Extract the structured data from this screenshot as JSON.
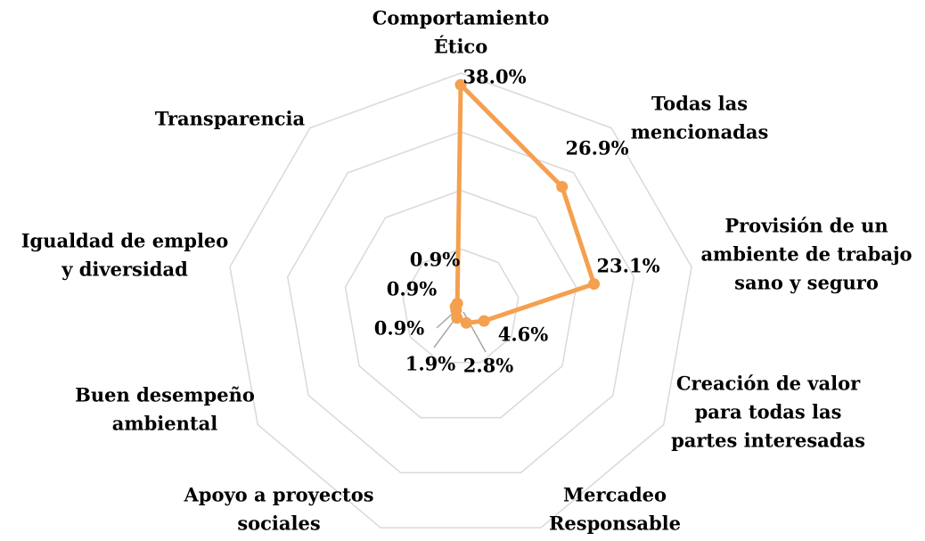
{
  "chart_data": {
    "type": "radar",
    "categories": [
      [
        "Comportamiento",
        "Ético"
      ],
      [
        "Todas las",
        "mencionadas"
      ],
      [
        "Provisión de un",
        "ambiente de trabajo",
        "sano y seguro"
      ],
      [
        "Creación de valor",
        "para todas las",
        "partes interesadas"
      ],
      [
        "Mercadeo",
        "Responsable"
      ],
      [
        "Apoyo a proyectos",
        "sociales"
      ],
      [
        "Buen desempeño",
        "ambiental"
      ],
      [
        "Igualdad de empleo",
        "y diversidad"
      ],
      [
        "Transparencia"
      ]
    ],
    "values": [
      38.0,
      26.9,
      23.1,
      4.6,
      2.8,
      1.9,
      0.9,
      0.9,
      0.9
    ],
    "value_labels": [
      "38.0%",
      "26.9%",
      "23.1%",
      "4.6%",
      "2.8%",
      "1.9%",
      "0.9%",
      "0.9%",
      "0.9%"
    ],
    "color": "#f4a04f",
    "ylim": [
      0,
      40
    ],
    "yticks": [
      0,
      10,
      20,
      30,
      40
    ],
    "grid": true
  }
}
